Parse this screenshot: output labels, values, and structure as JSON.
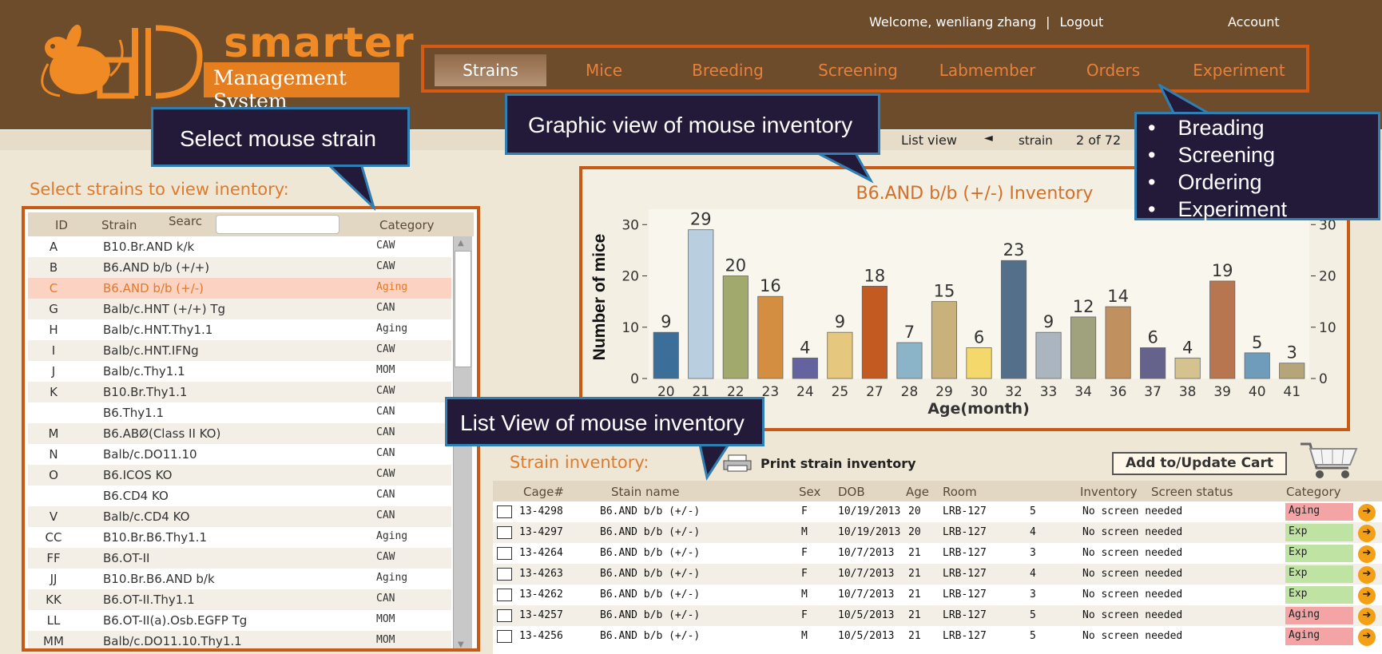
{
  "header": {
    "logo_text": "smarter",
    "logo_subtitle": "Management System",
    "welcome": "Welcome, wenliang zhang",
    "separator": "|",
    "logout": "Logout",
    "account": "Account"
  },
  "nav": {
    "items": [
      "Strains",
      "Mice",
      "Breeding",
      "Screening",
      "Labmember",
      "Orders",
      "Experiment"
    ],
    "active": "Strains"
  },
  "subbar": {
    "list_view": "List view",
    "strain_label": "strain",
    "pager": "2 of 72"
  },
  "strain_panel": {
    "title": "Select strains to view inentory:",
    "headers": {
      "id": "ID",
      "strain": "Strain",
      "search": "Searc",
      "category": "Category"
    },
    "search_value": "",
    "rows": [
      {
        "id": "A",
        "strain": "B10.Br.AND k/k",
        "category": "CAW"
      },
      {
        "id": "B",
        "strain": "B6.AND b/b (+/+)",
        "category": "CAW"
      },
      {
        "id": "C",
        "strain": "B6.AND b/b (+/-)",
        "category": "Aging",
        "selected": true
      },
      {
        "id": "G",
        "strain": "Balb/c.HNT (+/+) Tg",
        "category": "CAN"
      },
      {
        "id": "H",
        "strain": "Balb/c.HNT.Thy1.1",
        "category": "Aging"
      },
      {
        "id": "I",
        "strain": "Balb/c.HNT.IFNg",
        "category": "CAW"
      },
      {
        "id": "J",
        "strain": "Balb/c.Thy1.1",
        "category": "MOM"
      },
      {
        "id": "K",
        "strain": "B10.Br.Thy1.1",
        "category": "CAW"
      },
      {
        "id": "",
        "strain": "B6.Thy1.1",
        "category": "CAN"
      },
      {
        "id": "M",
        "strain": "B6.ABØ(Class II KO)",
        "category": "CAN"
      },
      {
        "id": "N",
        "strain": "Balb/c.DO11.10",
        "category": "CAN"
      },
      {
        "id": "O",
        "strain": "B6.ICOS KO",
        "category": "CAW"
      },
      {
        "id": "",
        "strain": "B6.CD4 KO",
        "category": "CAN"
      },
      {
        "id": "V",
        "strain": "Balb/c.CD4 KO",
        "category": "CAN"
      },
      {
        "id": "CC",
        "strain": "B10.Br.B6.Thy1.1",
        "category": "Aging"
      },
      {
        "id": "FF",
        "strain": "B6.OT-II",
        "category": "CAW"
      },
      {
        "id": "JJ",
        "strain": "B10.Br.B6.AND b/k",
        "category": "Aging"
      },
      {
        "id": "KK",
        "strain": "B6.OT-II.Thy1.1",
        "category": "CAN"
      },
      {
        "id": "LL",
        "strain": "B6.OT-II(a).Osb.EGFP Tg",
        "category": "MOM"
      },
      {
        "id": "MM",
        "strain": "Balb/c.DO11.10.Thy1.1",
        "category": "MOM"
      }
    ]
  },
  "callouts": {
    "select_strain": "Select mouse strain",
    "graphic_view": "Graphic view of mouse inventory",
    "list_view": "List View of mouse inventory",
    "bullets": [
      "Breading",
      "Screening",
      "Ordering",
      "Experiment"
    ],
    "bullet_char": "•"
  },
  "chart_data": {
    "type": "bar",
    "title": "B6.AND b/b (+/-) Inventory",
    "xlabel": "Age(month)",
    "ylabel": "Number of mice",
    "categories": [
      "20",
      "21",
      "22",
      "23",
      "24",
      "25",
      "27",
      "28",
      "29",
      "30",
      "32",
      "33",
      "34",
      "36",
      "37",
      "38",
      "39",
      "40",
      "41"
    ],
    "values": [
      9,
      29,
      20,
      16,
      4,
      9,
      18,
      7,
      15,
      6,
      23,
      9,
      12,
      14,
      6,
      4,
      19,
      5,
      3
    ],
    "colors": [
      "#3b6f9a",
      "#b9cfe0",
      "#a1a96c",
      "#d38e42",
      "#6463a0",
      "#e5c77d",
      "#c35a22",
      "#8bb4c8",
      "#c9b17c",
      "#f5d86c",
      "#546f8a",
      "#aab5c0",
      "#9fa27d",
      "#c0905e",
      "#65628c",
      "#d4c38e",
      "#b87650",
      "#6f9cba",
      "#b7a57a"
    ],
    "ylim": [
      0,
      33
    ],
    "yticks": [
      0,
      10,
      20,
      30
    ],
    "grid": false,
    "data_labels": true
  },
  "inventory": {
    "title": "Strain inventory:",
    "print_label": "Print strain inventory",
    "add_cart": "Add to/Update Cart",
    "headers": [
      "Cage#",
      "Stain name",
      "Sex",
      "DOB",
      "Age",
      "Room",
      "Inventory",
      "Screen status",
      "Category"
    ],
    "rows": [
      {
        "cage": "13-4298",
        "name": "B6.AND b/b (+/-)",
        "sex": "F",
        "dob": "10/19/2013",
        "age": "20",
        "room": "LRB-127",
        "inventory": "5",
        "screen": "No screen needed",
        "category": "Aging"
      },
      {
        "cage": "13-4297",
        "name": "B6.AND b/b (+/-)",
        "sex": "M",
        "dob": "10/19/2013",
        "age": "20",
        "room": "LRB-127",
        "inventory": "4",
        "screen": "No screen needed",
        "category": "Exp"
      },
      {
        "cage": "13-4264",
        "name": "B6.AND b/b (+/-)",
        "sex": "F",
        "dob": "10/7/2013",
        "age": "21",
        "room": "LRB-127",
        "inventory": "3",
        "screen": "No screen needed",
        "category": "Exp"
      },
      {
        "cage": "13-4263",
        "name": "B6.AND b/b (+/-)",
        "sex": "F",
        "dob": "10/7/2013",
        "age": "21",
        "room": "LRB-127",
        "inventory": "4",
        "screen": "No screen needed",
        "category": "Exp"
      },
      {
        "cage": "13-4262",
        "name": "B6.AND b/b (+/-)",
        "sex": "M",
        "dob": "10/7/2013",
        "age": "21",
        "room": "LRB-127",
        "inventory": "3",
        "screen": "No screen needed",
        "category": "Exp"
      },
      {
        "cage": "13-4257",
        "name": "B6.AND b/b (+/-)",
        "sex": "F",
        "dob": "10/5/2013",
        "age": "21",
        "room": "LRB-127",
        "inventory": "5",
        "screen": "No screen needed",
        "category": "Aging"
      },
      {
        "cage": "13-4256",
        "name": "B6.AND b/b (+/-)",
        "sex": "M",
        "dob": "10/5/2013",
        "age": "21",
        "room": "LRB-127",
        "inventory": "5",
        "screen": "No screen needed",
        "category": "Aging"
      }
    ],
    "category_colors": {
      "Aging": "#f4a4a4",
      "Exp": "#bfe3a3"
    },
    "go_icon": "arrow-right-circle-icon"
  }
}
